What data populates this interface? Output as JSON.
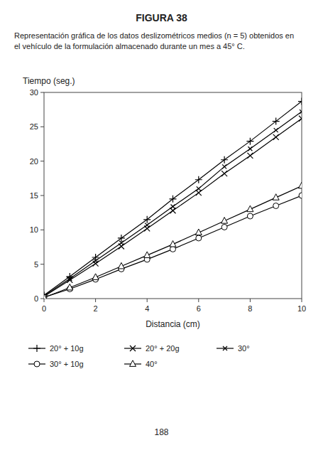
{
  "chart_data": {
    "type": "line",
    "title": "FIGURA 38",
    "subtitle": [
      "Representación gráfica de los datos deslizométricos medios (n = 5) obtenidos en",
      "el vehículo de la formulación almacenado durante un mes a 45° C."
    ],
    "x_label": "Distancia (cm)",
    "y_label": "Tiempo (seg.)",
    "annotations": [
      "188"
    ],
    "x": [
      0,
      1,
      2,
      3,
      4,
      5,
      6,
      7,
      8,
      9,
      10
    ],
    "xlim": [
      0,
      10
    ],
    "ylim": [
      0,
      30
    ],
    "xticks": [
      0,
      2,
      4,
      6,
      8,
      10
    ],
    "yticks": [
      0,
      5,
      10,
      15,
      20,
      25,
      30
    ],
    "grid": false,
    "legend": "bottom",
    "series": [
      {
        "name": "20° + 10g",
        "color": "#000000",
        "marker": "plus",
        "values": [
          0.5,
          3.2,
          6.0,
          8.8,
          11.5,
          14.5,
          17.3,
          20.2,
          22.9,
          25.8,
          28.7
        ]
      },
      {
        "name": "20° + 20g",
        "color": "#000000",
        "marker": "x",
        "values": [
          0.3,
          2.7,
          5.1,
          7.6,
          10.2,
          12.8,
          15.4,
          18.2,
          20.8,
          23.5,
          26.2
        ]
      },
      {
        "name": "30°",
        "color": "#000000",
        "marker": "x",
        "values": [
          0.4,
          2.9,
          5.5,
          8.1,
          10.7,
          13.4,
          16.0,
          19.2,
          21.8,
          24.5,
          27.2
        ]
      },
      {
        "name": "30° + 10g",
        "color": "#000000",
        "marker": "open-circle",
        "values": [
          0.2,
          1.4,
          2.8,
          4.3,
          5.7,
          7.2,
          8.8,
          10.4,
          12.0,
          13.5,
          15.0
        ]
      },
      {
        "name": "40°",
        "color": "#000000",
        "marker": "open-triangle",
        "values": [
          0.15,
          1.6,
          3.1,
          4.7,
          6.3,
          7.9,
          9.6,
          11.3,
          13.0,
          14.7,
          16.4
        ]
      }
    ]
  }
}
